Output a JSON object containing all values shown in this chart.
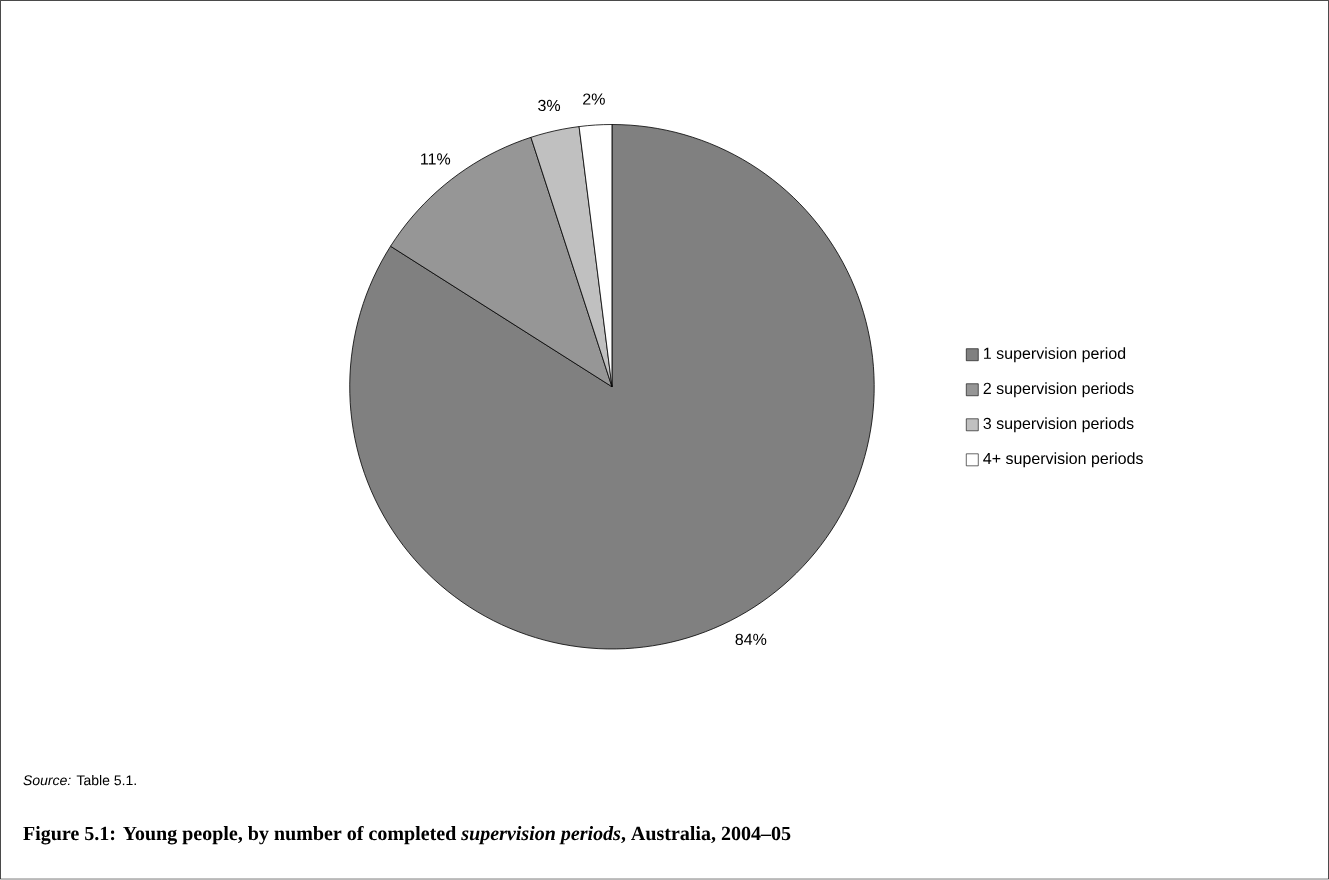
{
  "chart_data": {
    "type": "pie",
    "title": "Figure 5.1: Young people, by number of completed *supervision periods*, Australia, 2004–05",
    "categories": [
      "1 supervision period",
      "2 supervision periods",
      "3 supervision periods",
      "4+ supervision periods"
    ],
    "values": [
      84,
      11,
      3,
      2
    ],
    "colors": [
      "#808080",
      "#969696",
      "#c0c0c0",
      "#ffffff"
    ],
    "value_labels": [
      "84%",
      "11%",
      "3%",
      "2%"
    ],
    "legend": "right",
    "annotations": [
      "*Source:* Table 5.1."
    ]
  }
}
